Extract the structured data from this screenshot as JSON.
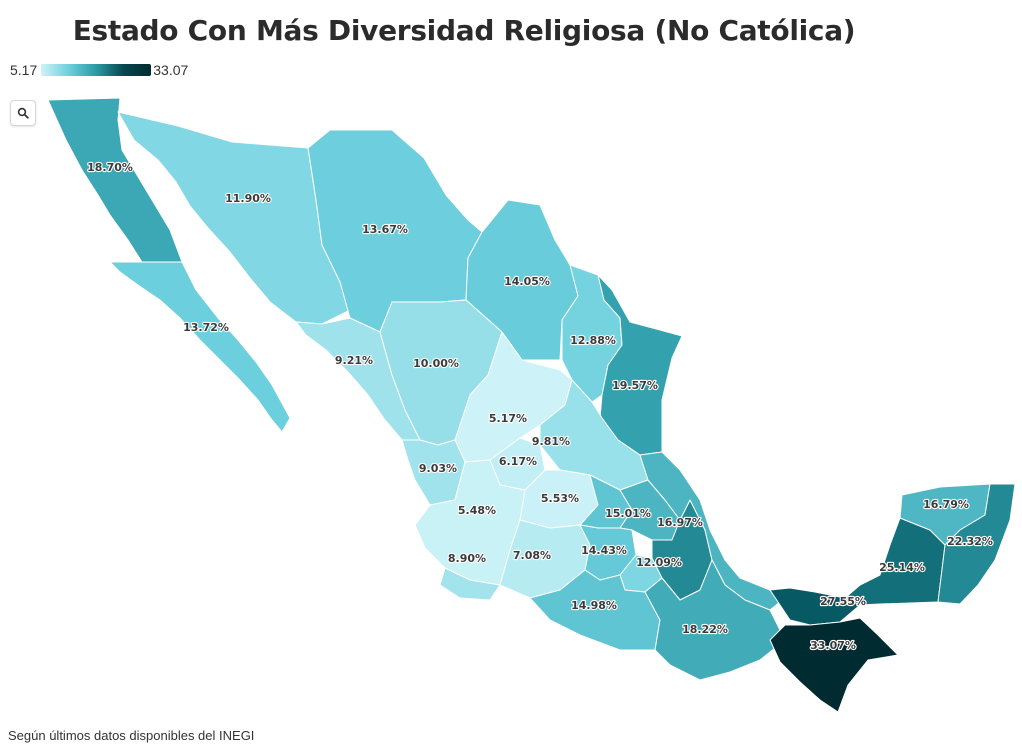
{
  "title": "Estado Con Más Diversidad Religiosa (No Católica)",
  "legend": {
    "min_label": "5.17",
    "max_label": "33.07",
    "min": 5.17,
    "max": 33.07
  },
  "zoom": {
    "icon": "search-icon"
  },
  "footer": "Según últimos datos disponibles del INEGI",
  "colors": {
    "low": "#cdf3f8",
    "high": "#002b30",
    "border": "#ffffff"
  },
  "labels": [
    {
      "text": "18.70%",
      "value": 18.7
    },
    {
      "text": "11.90%",
      "value": 11.9
    },
    {
      "text": "13.67%",
      "value": 13.67
    },
    {
      "text": "14.05%",
      "value": 14.05
    },
    {
      "text": "13.72%",
      "value": 13.72
    },
    {
      "text": "12.88%",
      "value": 12.88
    },
    {
      "text": "9.21%",
      "value": 9.21
    },
    {
      "text": "10.00%",
      "value": 10.0
    },
    {
      "text": "19.57%",
      "value": 19.57
    },
    {
      "text": "5.17%",
      "value": 5.17
    },
    {
      "text": "9.81%",
      "value": 9.81
    },
    {
      "text": "9.03%",
      "value": 9.03
    },
    {
      "text": "6.17%",
      "value": 6.17
    },
    {
      "text": "5.53%",
      "value": 5.53
    },
    {
      "text": "5.48%",
      "value": 5.48
    },
    {
      "text": "15.01%",
      "value": 15.01
    },
    {
      "text": "16.97%",
      "value": 16.97
    },
    {
      "text": "16.79%",
      "value": 16.79
    },
    {
      "text": "22.32%",
      "value": 22.32
    },
    {
      "text": "14.43%",
      "value": 14.43
    },
    {
      "text": "8.90%",
      "value": 8.9
    },
    {
      "text": "7.08%",
      "value": 7.08
    },
    {
      "text": "12.09%",
      "value": 12.09
    },
    {
      "text": "25.14%",
      "value": 25.14
    },
    {
      "text": "27.55%",
      "value": 27.55
    },
    {
      "text": "14.98%",
      "value": 14.98
    },
    {
      "text": "18.22%",
      "value": 18.22
    },
    {
      "text": "33.07%",
      "value": 33.07
    }
  ]
}
